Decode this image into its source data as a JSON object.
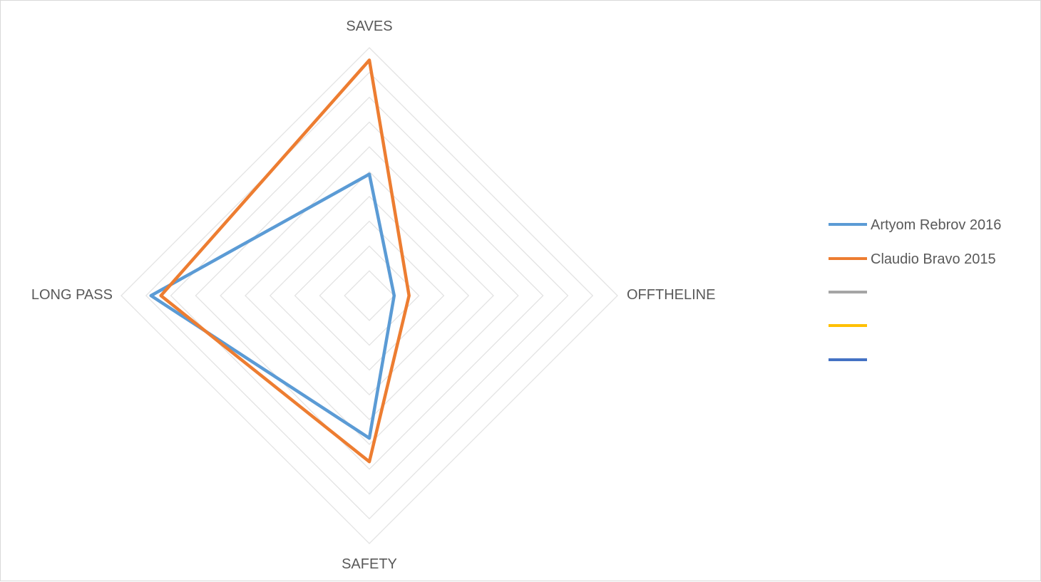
{
  "chart_data": {
    "type": "radar",
    "title": "",
    "axes": [
      "SAVES",
      "OFFTHELINE",
      "SAFETY",
      "LONG PASS"
    ],
    "range": [
      0,
      10
    ],
    "rings": 10,
    "grid": true,
    "legend_position": "right",
    "series": [
      {
        "name": "Artyom Rebrov 2016",
        "color": "#5b9bd5",
        "values": [
          4.9,
          1.0,
          5.75,
          8.8
        ]
      },
      {
        "name": "Claudio Bravo 2015",
        "color": "#ed7d31",
        "values": [
          9.5,
          1.6,
          6.7,
          8.4
        ]
      }
    ],
    "legend": [
      {
        "name": "Artyom Rebrov 2016",
        "color": "#5b9bd5"
      },
      {
        "name": "Claudio Bravo 2015",
        "color": "#ed7d31"
      },
      {
        "name": "",
        "color": "#a5a5a5"
      },
      {
        "name": "",
        "color": "#ffc000"
      },
      {
        "name": "",
        "color": "#4472c4"
      }
    ]
  }
}
